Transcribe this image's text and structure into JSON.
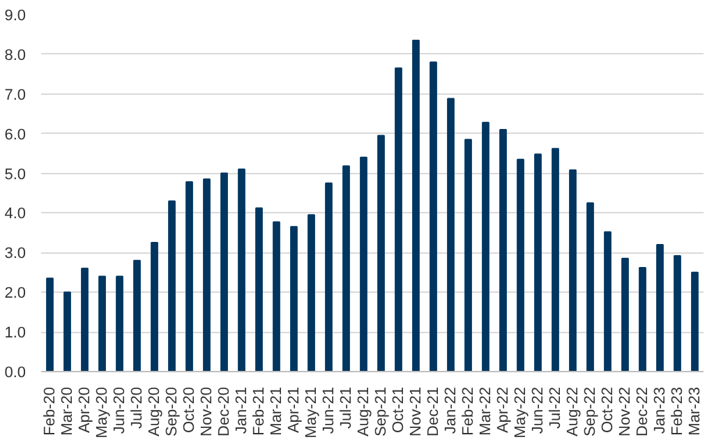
{
  "chart_data": {
    "type": "bar",
    "categories": [
      "Feb-20",
      "Mar-20",
      "Apr-20",
      "May-20",
      "Jun-20",
      "Jul-20",
      "Aug-20",
      "Sep-20",
      "Oct-20",
      "Nov-20",
      "Dec-20",
      "Jan-21",
      "Feb-21",
      "Mar-21",
      "Apr-21",
      "May-21",
      "Jun-21",
      "Jul-21",
      "Aug-21",
      "Sep-21",
      "Oct-21",
      "Nov-21",
      "Dec-21",
      "Jan-22",
      "Feb-22",
      "Mar-22",
      "Apr-22",
      "May-22",
      "Jun-22",
      "Jul-22",
      "Aug-22",
      "Sep-22",
      "Oct-22",
      "Nov-22",
      "Dec-22",
      "Jan-23",
      "Feb-23",
      "Mar-23"
    ],
    "values": [
      2.35,
      2.0,
      2.6,
      2.4,
      2.4,
      2.8,
      3.25,
      4.3,
      4.78,
      4.85,
      5.0,
      5.1,
      4.12,
      3.77,
      3.65,
      3.95,
      4.75,
      5.18,
      5.4,
      5.95,
      7.65,
      8.35,
      7.8,
      6.88,
      5.85,
      6.28,
      6.1,
      5.35,
      5.48,
      5.62,
      5.08,
      4.25,
      3.52,
      2.85,
      2.62,
      3.2,
      2.92,
      2.5
    ],
    "color": "#003660",
    "ylim": [
      0,
      9
    ],
    "yticks": [
      {
        "value": 0,
        "label": "0.0"
      },
      {
        "value": 1,
        "label": "1.0"
      },
      {
        "value": 2,
        "label": "2.0"
      },
      {
        "value": 3,
        "label": "3.0"
      },
      {
        "value": 4,
        "label": "4.0"
      },
      {
        "value": 5,
        "label": "5.0"
      },
      {
        "value": 6,
        "label": "6.0"
      },
      {
        "value": 7,
        "label": "7.0"
      },
      {
        "value": 8,
        "label": "8.0"
      },
      {
        "value": 9,
        "label": "9.0"
      }
    ],
    "grid": "y"
  }
}
